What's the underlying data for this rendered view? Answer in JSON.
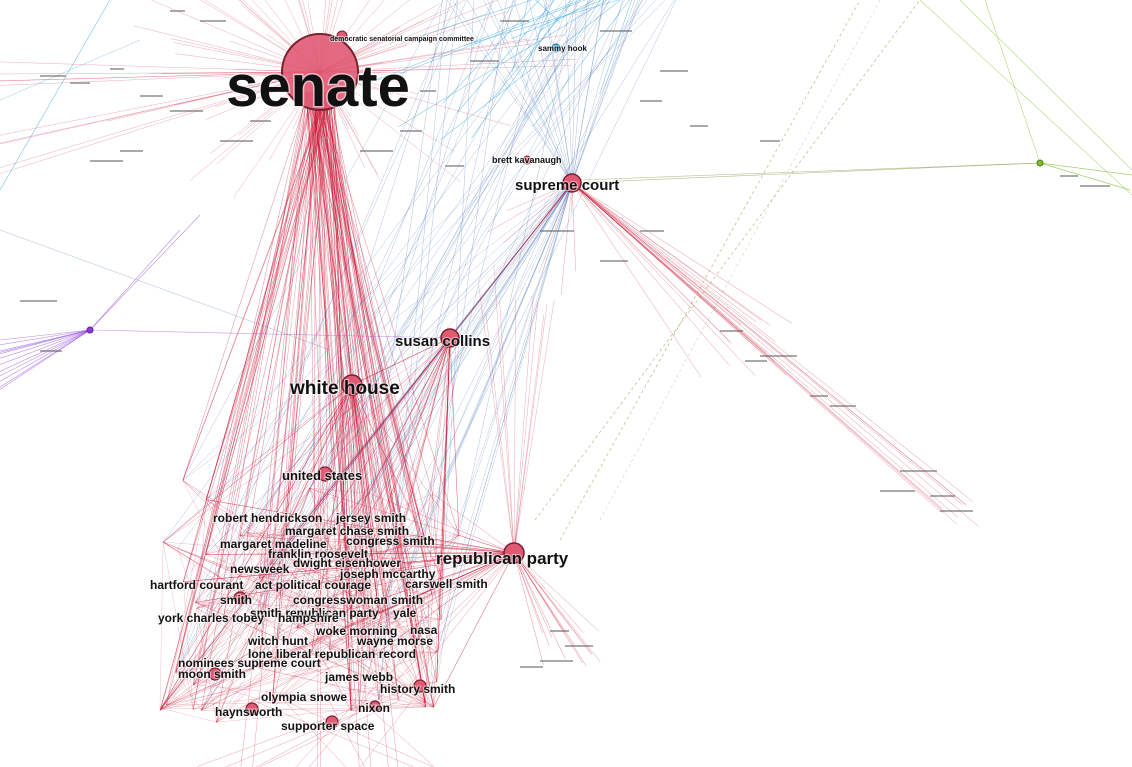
{
  "colors": {
    "edge_red": "#c8102e",
    "edge_blue": "#1f4fa8",
    "edge_cyan": "#1e9bd7",
    "edge_green": "#7fbf2a",
    "edge_olive": "#8a8a3a",
    "edge_purple": "#8a3ad6",
    "node_fill": "#e05a74",
    "node_stroke": "#7a1f2e",
    "label": "#111111"
  },
  "labels": {
    "senate": "senate",
    "dscc": "democratic senatorial campaign committee",
    "sammy_hook": "sammy hook",
    "brett_kavanaugh": "brett kavanaugh",
    "supreme_court": "supreme court",
    "susan_collins": "susan collins",
    "white_house": "white house",
    "united_states": "united states",
    "robert_hendrickson": "robert hendrickson",
    "jersey_smith": "jersey smith",
    "margaret_chase_smith": "margaret chase smith",
    "margaret_madeline": "margaret madeline",
    "congress_smith": "congress smith",
    "franklin_roosevelt": "franklin roosevelt",
    "newsweek": "newsweek",
    "dwight_eisenhower": "dwight eisenhower",
    "joseph_mccarthy": "joseph mccarthy",
    "republican_party": "republican party",
    "hartford_courant": "hartford courant",
    "act_political_courage": "act political courage",
    "carswell_smith": "carswell smith",
    "smith": "smith",
    "congresswoman_smith": "congresswoman smith",
    "smith_republican_party": "smith republican party",
    "yale": "yale",
    "york_charles_tobey": "york charles tobey",
    "hampshire": "hampshire",
    "woke_morning": "woke morning",
    "nasa": "nasa",
    "witch_hunt": "witch hunt",
    "wayne_morse": "wayne morse",
    "lone_liberal_republican_record": "lone liberal republican record",
    "nominees_supreme_court": "nominees supreme court",
    "moon_smith": "moon smith",
    "james_webb": "james webb",
    "history_smith": "history smith",
    "olympia_snowe": "olympia snowe",
    "nixon": "nixon",
    "haynsworth": "haynsworth",
    "supporter_space": "supporter space"
  }
}
